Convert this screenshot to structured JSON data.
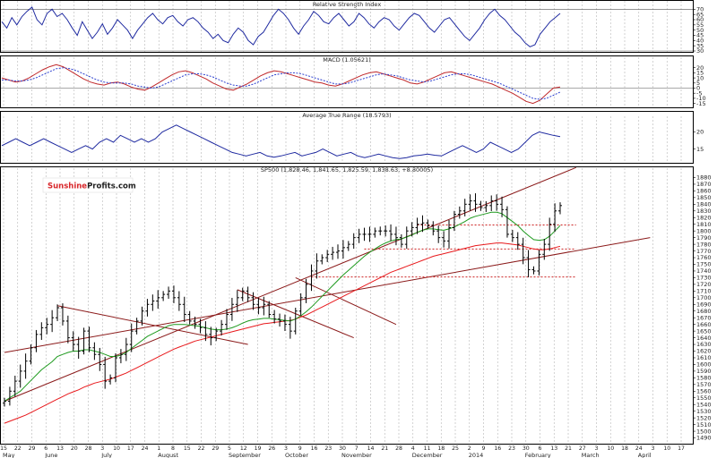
{
  "chart_data": [
    {
      "type": "line",
      "title": "Relative Strength Index",
      "yticks": [
        30,
        35,
        40,
        45,
        50,
        55,
        60,
        65,
        70
      ],
      "ylim": [
        30,
        72
      ],
      "reference_lines": [
        30,
        70
      ],
      "series": [
        {
          "color": "#1f2aa0",
          "values": [
            58,
            52,
            62,
            55,
            63,
            68,
            72,
            60,
            55,
            66,
            70,
            63,
            66,
            60,
            52,
            45,
            58,
            50,
            42,
            48,
            56,
            46,
            52,
            60,
            55,
            50,
            42,
            50,
            56,
            62,
            66,
            60,
            56,
            62,
            64,
            58,
            54,
            60,
            62,
            58,
            52,
            48,
            42,
            46,
            40,
            38,
            46,
            52,
            48,
            40,
            36,
            44,
            48,
            56,
            64,
            70,
            66,
            60,
            52,
            46,
            54,
            60,
            68,
            64,
            58,
            56,
            62,
            66,
            60,
            54,
            58,
            66,
            62,
            56,
            52,
            58,
            62,
            60,
            54,
            50,
            56,
            62,
            66,
            64,
            58,
            52,
            48,
            54,
            60,
            62,
            56,
            50,
            44,
            40,
            46,
            52,
            60,
            66,
            70,
            64,
            60,
            54,
            48,
            44,
            38,
            34,
            36,
            46,
            52,
            58,
            62,
            66
          ]
        }
      ]
    },
    {
      "type": "line",
      "title": "MACD (1.05621)",
      "yticks": [
        -15,
        -10,
        -5,
        0,
        5,
        10,
        15,
        20
      ],
      "ylim": [
        -18,
        25
      ],
      "zero_line": 0,
      "series": [
        {
          "color": "#c0282a",
          "values": [
            10,
            8,
            6,
            7,
            10,
            14,
            18,
            21,
            23,
            21,
            17,
            13,
            9,
            6,
            4,
            3,
            5,
            6,
            4,
            1,
            -1,
            -2,
            1,
            5,
            9,
            13,
            16,
            17,
            15,
            12,
            9,
            5,
            2,
            -1,
            -2,
            1,
            4,
            8,
            12,
            15,
            17,
            16,
            14,
            12,
            10,
            8,
            6,
            5,
            3,
            2,
            4,
            7,
            10,
            13,
            15,
            16,
            14,
            12,
            10,
            8,
            5,
            4,
            6,
            9,
            12,
            15,
            16,
            14,
            12,
            10,
            8,
            6,
            4,
            1,
            -2,
            -5,
            -9,
            -13,
            -15,
            -12,
            -6,
            0,
            1
          ]
        },
        {
          "color": "#2b3fcf",
          "dashed": true,
          "values": [
            8,
            8,
            7,
            7,
            8,
            10,
            13,
            16,
            19,
            20,
            19,
            17,
            14,
            11,
            8,
            6,
            5,
            5,
            5,
            4,
            2,
            1,
            0,
            1,
            4,
            7,
            10,
            13,
            14,
            14,
            13,
            11,
            8,
            5,
            3,
            2,
            2,
            4,
            7,
            10,
            13,
            14,
            15,
            15,
            14,
            12,
            10,
            8,
            6,
            4,
            4,
            5,
            7,
            9,
            11,
            13,
            14,
            13,
            12,
            10,
            8,
            7,
            6,
            7,
            9,
            11,
            13,
            14,
            14,
            13,
            11,
            9,
            7,
            5,
            2,
            -1,
            -4,
            -7,
            -10,
            -11,
            -10,
            -7,
            -4
          ]
        }
      ]
    },
    {
      "type": "line",
      "title": "Average True Range (18.5793)",
      "yticks": [
        15,
        20
      ],
      "ylim": [
        11.5,
        23
      ],
      "series": [
        {
          "color": "#1f2aa0",
          "values": [
            16,
            17,
            18,
            17,
            16,
            17,
            18,
            17,
            16,
            15,
            14,
            15,
            16,
            15,
            17,
            18,
            17,
            19,
            18,
            17,
            18,
            17,
            18,
            20,
            21,
            22,
            21,
            20,
            19,
            18,
            17,
            16,
            15,
            14,
            13.5,
            13,
            13.5,
            14,
            13,
            12.6,
            13,
            13.5,
            14,
            13,
            13.5,
            14,
            15,
            14,
            13,
            13.5,
            14,
            13,
            12.5,
            13,
            13.5,
            13,
            12.5,
            12.2,
            12.5,
            13,
            13.2,
            13.5,
            13.2,
            13,
            14,
            15,
            16,
            15,
            14,
            15,
            17,
            16,
            15,
            14,
            15,
            17,
            19,
            20,
            19.5,
            19,
            18.6
          ]
        }
      ]
    },
    {
      "type": "candlestick",
      "title": "SP500 (1,828.46, 1,841.65, 1,825.59, 1,838.63, +8.80005)",
      "yticks": [
        1490,
        1500,
        1510,
        1520,
        1530,
        1540,
        1550,
        1560,
        1570,
        1580,
        1590,
        1600,
        1610,
        1620,
        1630,
        1640,
        1650,
        1660,
        1670,
        1680,
        1690,
        1700,
        1710,
        1720,
        1730,
        1740,
        1750,
        1760,
        1770,
        1780,
        1790,
        1800,
        1810,
        1820,
        1830,
        1840,
        1850,
        1860,
        1870,
        1880
      ],
      "ylim": [
        1484,
        1886
      ],
      "x_tick_labels": [
        "15",
        "22",
        "29",
        "6",
        "13",
        "20",
        "28",
        "3",
        "10",
        "17",
        "24",
        "1",
        "8",
        "15",
        "22",
        "29",
        "5",
        "12",
        "19",
        "26",
        "3",
        "9",
        "16",
        "23",
        "30",
        "7",
        "14",
        "21",
        "28",
        "4",
        "11",
        "18",
        "25",
        "2",
        "9",
        "16",
        "23",
        "30",
        "6",
        "13",
        "21",
        "27",
        "3",
        "10",
        "18",
        "24",
        "3",
        "10",
        "17",
        "24",
        "31",
        "7",
        "14",
        "21"
      ],
      "month_labels": [
        {
          "label": "May",
          "tick_index": 0
        },
        {
          "label": "June",
          "tick_index": 3
        },
        {
          "label": "July",
          "tick_index": 7
        },
        {
          "label": "August",
          "tick_index": 11
        },
        {
          "label": "September",
          "tick_index": 16
        },
        {
          "label": "October",
          "tick_index": 20
        },
        {
          "label": "November",
          "tick_index": 24
        },
        {
          "label": "December",
          "tick_index": 29
        },
        {
          "label": "2014",
          "tick_index": 33
        },
        {
          "label": "February",
          "tick_index": 37
        },
        {
          "label": "March",
          "tick_index": 41
        },
        {
          "label": "April",
          "tick_index": 45
        }
      ],
      "close": [
        1545,
        1560,
        1575,
        1590,
        1605,
        1625,
        1645,
        1655,
        1660,
        1670,
        1685,
        1665,
        1640,
        1630,
        1620,
        1650,
        1625,
        1615,
        1600,
        1575,
        1580,
        1610,
        1615,
        1630,
        1650,
        1665,
        1680,
        1690,
        1695,
        1700,
        1705,
        1710,
        1700,
        1690,
        1675,
        1665,
        1660,
        1655,
        1645,
        1640,
        1650,
        1660,
        1675,
        1690,
        1700,
        1710,
        1700,
        1690,
        1685,
        1690,
        1675,
        1668,
        1665,
        1660,
        1650,
        1680,
        1700,
        1720,
        1740,
        1755,
        1760,
        1765,
        1768,
        1770,
        1775,
        1780,
        1790,
        1795,
        1795,
        1795,
        1800,
        1800,
        1800,
        1795,
        1790,
        1780,
        1800,
        1805,
        1810,
        1812,
        1808,
        1800,
        1790,
        1785,
        1805,
        1825,
        1830,
        1840,
        1845,
        1840,
        1835,
        1838,
        1845,
        1840,
        1832,
        1795,
        1790,
        1780,
        1760,
        1742,
        1740,
        1765,
        1780,
        1810,
        1830,
        1838
      ],
      "sma_green": [
        1545,
        1550,
        1555,
        1560,
        1568,
        1576,
        1584,
        1592,
        1598,
        1604,
        1612,
        1615,
        1618,
        1620,
        1620,
        1622,
        1622,
        1620,
        1618,
        1615,
        1612,
        1612,
        1614,
        1618,
        1624,
        1630,
        1636,
        1642,
        1646,
        1650,
        1654,
        1658,
        1660,
        1660,
        1660,
        1659,
        1658,
        1657,
        1655,
        1653,
        1652,
        1652,
        1653,
        1655,
        1658,
        1662,
        1665,
        1667,
        1668,
        1669,
        1669,
        1668,
        1667,
        1666,
        1665,
        1668,
        1673,
        1679,
        1686,
        1694,
        1702,
        1710,
        1718,
        1726,
        1734,
        1741,
        1748,
        1755,
        1762,
        1768,
        1773,
        1778,
        1782,
        1785,
        1787,
        1788,
        1791,
        1794,
        1798,
        1801,
        1803,
        1803,
        1802,
        1801,
        1803,
        1806,
        1810,
        1814,
        1819,
        1822,
        1824,
        1826,
        1828,
        1828,
        1826,
        1820,
        1814,
        1808,
        1800,
        1793,
        1787,
        1786,
        1787,
        1792,
        1800,
        1808
      ],
      "sma_red": [
        1512,
        1515,
        1518,
        1521,
        1524,
        1528,
        1532,
        1536,
        1540,
        1544,
        1548,
        1552,
        1556,
        1559,
        1562,
        1566,
        1569,
        1572,
        1574,
        1576,
        1578,
        1581,
        1584,
        1587,
        1591,
        1595,
        1599,
        1603,
        1607,
        1611,
        1615,
        1619,
        1623,
        1626,
        1629,
        1632,
        1635,
        1637,
        1639,
        1641,
        1643,
        1645,
        1647,
        1649,
        1651,
        1653,
        1655,
        1657,
        1659,
        1661,
        1662,
        1663,
        1664,
        1665,
        1666,
        1668,
        1671,
        1674,
        1678,
        1682,
        1686,
        1690,
        1694,
        1698,
        1702,
        1706,
        1710,
        1714,
        1718,
        1722,
        1726,
        1730,
        1734,
        1738,
        1741,
        1744,
        1747,
        1750,
        1753,
        1756,
        1759,
        1762,
        1764,
        1766,
        1768,
        1770,
        1772,
        1774,
        1776,
        1778,
        1779,
        1780,
        1781,
        1782,
        1782,
        1781,
        1780,
        1779,
        1777,
        1775,
        1773,
        1772,
        1772,
        1773,
        1775,
        1777
      ],
      "trend_lines": [
        {
          "color": "#8b1a1a",
          "from": {
            "i": 0,
            "y": 1545
          },
          "to": {
            "i": 108,
            "y": 1895
          }
        },
        {
          "color": "#8b1a1a",
          "from": {
            "i": 0,
            "y": 1618
          },
          "to": {
            "i": 122,
            "y": 1790
          }
        },
        {
          "color": "#8b1a1a",
          "from": {
            "i": 10,
            "y": 1688
          },
          "to": {
            "i": 46,
            "y": 1630
          }
        },
        {
          "color": "#8b1a1a",
          "from": {
            "i": 44,
            "y": 1712
          },
          "to": {
            "i": 66,
            "y": 1640
          }
        },
        {
          "color": "#8b1a1a",
          "from": {
            "i": 55,
            "y": 1730
          },
          "to": {
            "i": 74,
            "y": 1660
          }
        }
      ],
      "support_lines": [
        {
          "color": "#cc2222",
          "y": 1809,
          "from_i": 78,
          "to_i": 108
        },
        {
          "color": "#cc2222",
          "y": 1773,
          "from_i": 68,
          "to_i": 108
        },
        {
          "color": "#cc2222",
          "y": 1731,
          "from_i": 58,
          "to_i": 108
        }
      ]
    }
  ],
  "logo": {
    "part1": "Sunshine",
    "part2": "Profits",
    "part3": ".com"
  }
}
